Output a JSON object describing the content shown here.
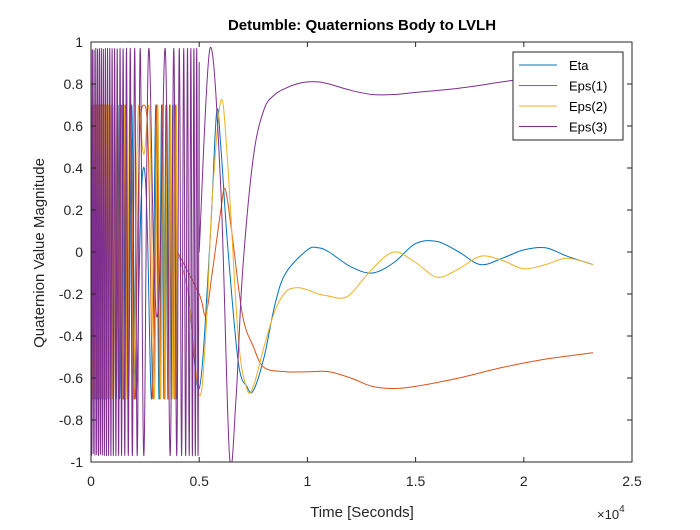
{
  "chart_data": {
    "type": "line",
    "title": "Detumble: Quaternions Body to LVLH",
    "xlabel": "Time [Seconds]",
    "ylabel": "Quaternion Value Magnitude",
    "x_exponent_label": "×10",
    "x_exponent_power": "4",
    "xlim": [
      0,
      2.5
    ],
    "ylim": [
      -1,
      1
    ],
    "xticks": [
      0,
      0.5,
      1,
      1.5,
      2,
      2.5
    ],
    "xtick_labels": [
      "0",
      "0.5",
      "1",
      "1.5",
      "2",
      "2.5"
    ],
    "yticks": [
      -1,
      -0.8,
      -0.6,
      -0.4,
      -0.2,
      0,
      0.2,
      0.4,
      0.6,
      0.8,
      1
    ],
    "ytick_labels": [
      "-1",
      "-0.8",
      "-0.6",
      "-0.4",
      "-0.2",
      "0",
      "0.2",
      "0.4",
      "0.6",
      "0.8",
      "1"
    ],
    "grid": false,
    "legend_position": "top-right",
    "series": [
      {
        "name": "Eta",
        "color": "#0072BD",
        "x": [
          0,
          0.2,
          0.4,
          0.45,
          0.5,
          0.55,
          0.58,
          0.6,
          0.63,
          0.68,
          0.72,
          0.75,
          0.8,
          0.85,
          0.9,
          1.0,
          1.05,
          1.1,
          1.2,
          1.3,
          1.4,
          1.5,
          1.6,
          1.7,
          1.8,
          1.9,
          2.0,
          2.1,
          2.2,
          2.32
        ],
        "y": [
          0,
          0,
          0,
          -0.2,
          -0.65,
          0.05,
          0.66,
          0.5,
          0.05,
          -0.52,
          -0.64,
          -0.66,
          -0.5,
          -0.25,
          -0.1,
          0.01,
          0.02,
          0.0,
          -0.07,
          -0.1,
          -0.05,
          0.04,
          0.05,
          0.0,
          -0.06,
          -0.03,
          0.01,
          0.02,
          -0.02,
          -0.06
        ]
      },
      {
        "name": "Eps(1)",
        "color": "#D95319",
        "x": [
          0,
          0.2,
          0.4,
          0.5,
          0.53,
          0.56,
          0.6,
          0.62,
          0.65,
          0.7,
          0.75,
          0.8,
          0.9,
          1.0,
          1.1,
          1.2,
          1.3,
          1.4,
          1.5,
          1.7,
          1.9,
          2.1,
          2.32
        ],
        "y": [
          0,
          0,
          0,
          -0.2,
          -0.3,
          -0.1,
          0.2,
          0.3,
          0.1,
          -0.3,
          -0.45,
          -0.55,
          -0.57,
          -0.57,
          -0.57,
          -0.6,
          -0.64,
          -0.65,
          -0.64,
          -0.6,
          -0.55,
          -0.51,
          -0.48
        ]
      },
      {
        "name": "Eps(2)",
        "color": "#EDB120",
        "x": [
          0,
          0.2,
          0.4,
          0.45,
          0.5,
          0.53,
          0.56,
          0.6,
          0.63,
          0.68,
          0.72,
          0.75,
          0.8,
          0.85,
          0.9,
          0.95,
          1.0,
          1.05,
          1.1,
          1.15,
          1.2,
          1.3,
          1.4,
          1.5,
          1.6,
          1.7,
          1.8,
          1.9,
          2.0,
          2.1,
          2.2,
          2.32
        ],
        "y": [
          0,
          0,
          0,
          -0.2,
          -0.68,
          -0.4,
          0.25,
          0.72,
          0.45,
          -0.4,
          -0.65,
          -0.64,
          -0.45,
          -0.28,
          -0.19,
          -0.17,
          -0.18,
          -0.2,
          -0.21,
          -0.22,
          -0.2,
          -0.08,
          0.0,
          -0.05,
          -0.12,
          -0.08,
          -0.02,
          -0.04,
          -0.08,
          -0.06,
          -0.03,
          -0.06
        ]
      },
      {
        "name": "Eps(3)",
        "color": "#7E2F8E",
        "x": [
          0,
          0.5,
          0.55,
          0.6,
          0.64,
          0.67,
          0.7,
          0.75,
          0.8,
          0.85,
          0.9,
          0.95,
          1.0,
          1.05,
          1.1,
          1.2,
          1.3,
          1.4,
          1.5,
          1.7,
          1.9,
          2.1,
          2.32
        ],
        "y": [
          0,
          0,
          0.97,
          0.3,
          -0.97,
          -0.7,
          -0.1,
          0.45,
          0.68,
          0.75,
          0.78,
          0.8,
          0.81,
          0.81,
          0.8,
          0.77,
          0.75,
          0.75,
          0.76,
          0.78,
          0.81,
          0.84,
          0.87
        ]
      }
    ]
  }
}
